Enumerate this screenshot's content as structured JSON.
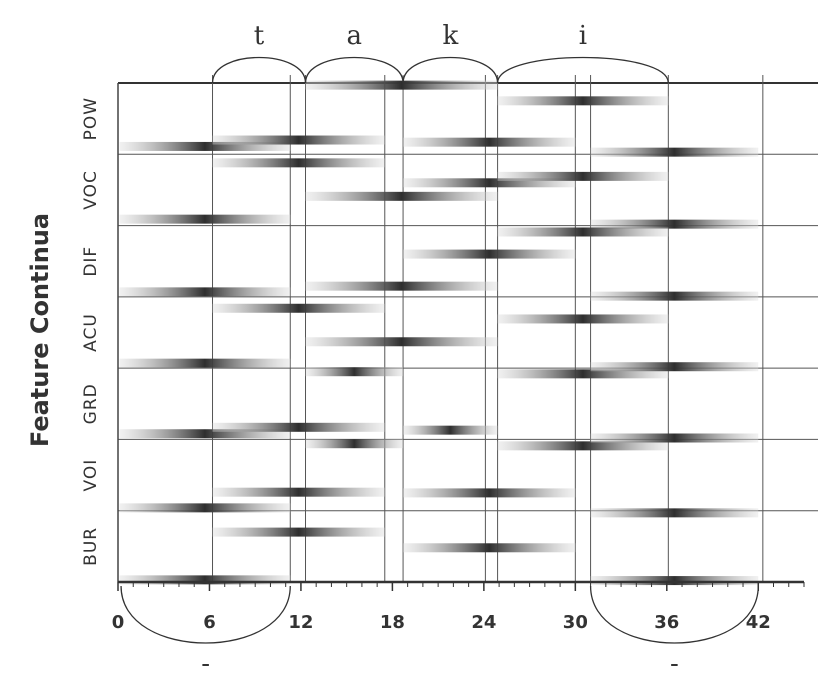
{
  "chart_data": {
    "type": "feature-bands",
    "y_label": "Feature Continua",
    "rows": [
      "BUR",
      "VOI",
      "GRD",
      "ACU",
      "DIF",
      "VOC",
      "POW"
    ],
    "xlim": [
      0,
      45
    ],
    "ylim": [
      0,
      7
    ],
    "xticks": [
      0,
      6,
      12,
      18,
      24,
      30,
      36,
      42
    ],
    "color": "#2e2e2e",
    "boundaries": [
      6.2,
      11.3,
      12.3,
      17.5,
      18.7,
      24.1,
      24.9,
      30,
      31,
      36.1,
      42.3
    ],
    "segments": [
      {
        "label": "t",
        "x": [
          6.2,
          12.3
        ]
      },
      {
        "label": "a",
        "x": [
          12.3,
          18.7
        ]
      },
      {
        "label": "k",
        "x": [
          18.7,
          24.9
        ]
      },
      {
        "label": "i",
        "x": [
          24.9,
          36.1
        ]
      }
    ],
    "bottom_marks": [
      {
        "label": "-",
        "x": [
          0.2,
          11.3
        ]
      },
      {
        "label": "-",
        "x": [
          31,
          42
        ]
      }
    ],
    "bands": [
      {
        "x": [
          0.1,
          11.3
        ],
        "y": 0.03
      },
      {
        "x": [
          6.2,
          17.5
        ],
        "y": 0.7
      },
      {
        "x": [
          18.7,
          30
        ],
        "y": 0.48
      },
      {
        "x": [
          31,
          42
        ],
        "y": 0.02
      },
      {
        "x": [
          0.1,
          11.3
        ],
        "y": 1.04
      },
      {
        "x": [
          6.2,
          17.5
        ],
        "y": 1.26
      },
      {
        "x": [
          18.7,
          30
        ],
        "y": 1.25
      },
      {
        "x": [
          31,
          42
        ],
        "y": 0.97
      },
      {
        "x": [
          0.1,
          11.3
        ],
        "y": 2.08
      },
      {
        "x": [
          6.2,
          17.5
        ],
        "y": 2.17
      },
      {
        "x": [
          12.3,
          18.7
        ],
        "y": 1.94
      },
      {
        "x": [
          18.7,
          24.9
        ],
        "y": 2.13
      },
      {
        "x": [
          24.9,
          36.1
        ],
        "y": 1.91
      },
      {
        "x": [
          31,
          42
        ],
        "y": 2.02
      },
      {
        "x": [
          0.1,
          11.3
        ],
        "y": 3.07
      },
      {
        "x": [
          12.3,
          18.7
        ],
        "y": 2.95
      },
      {
        "x": [
          12.3,
          24.9
        ],
        "y": 3.37
      },
      {
        "x": [
          24.9,
          36.1
        ],
        "y": 2.92
      },
      {
        "x": [
          31,
          42
        ],
        "y": 3.02
      },
      {
        "x": [
          24.9,
          36.1
        ],
        "y": 3.69
      },
      {
        "x": [
          0.1,
          11.3
        ],
        "y": 4.07
      },
      {
        "x": [
          6.2,
          17.5
        ],
        "y": 3.84
      },
      {
        "x": [
          12.3,
          24.9
        ],
        "y": 4.15
      },
      {
        "x": [
          31,
          42
        ],
        "y": 4.01
      },
      {
        "x": [
          18.7,
          30
        ],
        "y": 4.6
      },
      {
        "x": [
          0.1,
          11.3
        ],
        "y": 5.09
      },
      {
        "x": [
          12.3,
          24.9
        ],
        "y": 5.41
      },
      {
        "x": [
          18.7,
          30
        ],
        "y": 5.6
      },
      {
        "x": [
          24.9,
          36.1
        ],
        "y": 5.69
      },
      {
        "x": [
          31,
          42
        ],
        "y": 5.02
      },
      {
        "x": [
          24.9,
          36.1
        ],
        "y": 4.91
      },
      {
        "x": [
          0.1,
          11.3
        ],
        "y": 6.11
      },
      {
        "x": [
          6.2,
          17.5
        ],
        "y": 6.2
      },
      {
        "x": [
          6.2,
          17.5
        ],
        "y": 5.88
      },
      {
        "x": [
          18.7,
          30
        ],
        "y": 6.17
      },
      {
        "x": [
          31,
          42
        ],
        "y": 6.03
      },
      {
        "x": [
          12.3,
          24.9
        ],
        "y": 6.97
      },
      {
        "x": [
          24.9,
          36.1
        ],
        "y": 6.75
      }
    ]
  }
}
